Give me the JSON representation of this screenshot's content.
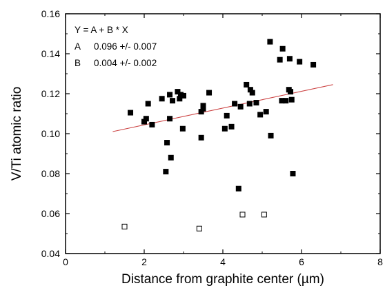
{
  "chart_data": {
    "type": "scatter",
    "xlabel": "Distance from graphite center (µm)",
    "ylabel": "V/Ti atomic ratio",
    "xlim": [
      0,
      8
    ],
    "ylim": [
      0.04,
      0.16
    ],
    "x_ticks": [
      0,
      2,
      4,
      6,
      8
    ],
    "x_tick_labels": [
      "0",
      "2",
      "4",
      "6",
      "8"
    ],
    "y_ticks": [
      0.04,
      0.06,
      0.08,
      0.1,
      0.12,
      0.14,
      0.16
    ],
    "y_tick_labels": [
      "0.04",
      "0.06",
      "0.08",
      "0.10",
      "0.12",
      "0.14",
      "0.16"
    ],
    "grid": false,
    "annotation": {
      "equation": "Y = A + B * X",
      "rows": [
        {
          "param": "A",
          "value": "0.096 +/- 0.007"
        },
        {
          "param": "B",
          "value": "0.004 +/- 0.002"
        }
      ]
    },
    "series": [
      {
        "marker": "filled-square",
        "color": "#000000",
        "points": [
          [
            1.65,
            0.1105
          ],
          [
            2.0,
            0.106
          ],
          [
            2.05,
            0.1075
          ],
          [
            2.1,
            0.115
          ],
          [
            2.2,
            0.1045
          ],
          [
            2.45,
            0.1175
          ],
          [
            2.55,
            0.081
          ],
          [
            2.58,
            0.0955
          ],
          [
            2.65,
            0.1075
          ],
          [
            2.65,
            0.1195
          ],
          [
            2.68,
            0.088
          ],
          [
            2.72,
            0.1165
          ],
          [
            2.85,
            0.121
          ],
          [
            2.9,
            0.1175
          ],
          [
            2.93,
            0.1195
          ],
          [
            2.98,
            0.1025
          ],
          [
            3.0,
            0.119
          ],
          [
            3.45,
            0.098
          ],
          [
            3.45,
            0.111
          ],
          [
            3.5,
            0.1125
          ],
          [
            3.5,
            0.114
          ],
          [
            3.65,
            0.1205
          ],
          [
            4.05,
            0.1025
          ],
          [
            4.1,
            0.109
          ],
          [
            4.22,
            0.1035
          ],
          [
            4.3,
            0.115
          ],
          [
            4.4,
            0.0725
          ],
          [
            4.45,
            0.1135
          ],
          [
            4.6,
            0.1245
          ],
          [
            4.68,
            0.115
          ],
          [
            4.7,
            0.122
          ],
          [
            4.75,
            0.1205
          ],
          [
            4.85,
            0.1155
          ],
          [
            4.95,
            0.1095
          ],
          [
            5.1,
            0.111
          ],
          [
            5.2,
            0.146
          ],
          [
            5.22,
            0.099
          ],
          [
            5.45,
            0.137
          ],
          [
            5.5,
            0.1165
          ],
          [
            5.52,
            0.1425
          ],
          [
            5.6,
            0.1165
          ],
          [
            5.68,
            0.122
          ],
          [
            5.7,
            0.1375
          ],
          [
            5.72,
            0.121
          ],
          [
            5.75,
            0.117
          ],
          [
            5.78,
            0.08
          ],
          [
            5.95,
            0.136
          ],
          [
            6.3,
            0.1345
          ]
        ]
      },
      {
        "marker": "open-square",
        "color": "#000000",
        "points": [
          [
            1.5,
            0.0535
          ],
          [
            3.4,
            0.0525
          ],
          [
            4.5,
            0.0595
          ],
          [
            5.05,
            0.0595
          ]
        ]
      }
    ],
    "fit_line": {
      "color": "#cc4444",
      "x_start": 1.2,
      "x_end": 6.8,
      "intercept": 0.096,
      "slope": 0.0042
    }
  }
}
